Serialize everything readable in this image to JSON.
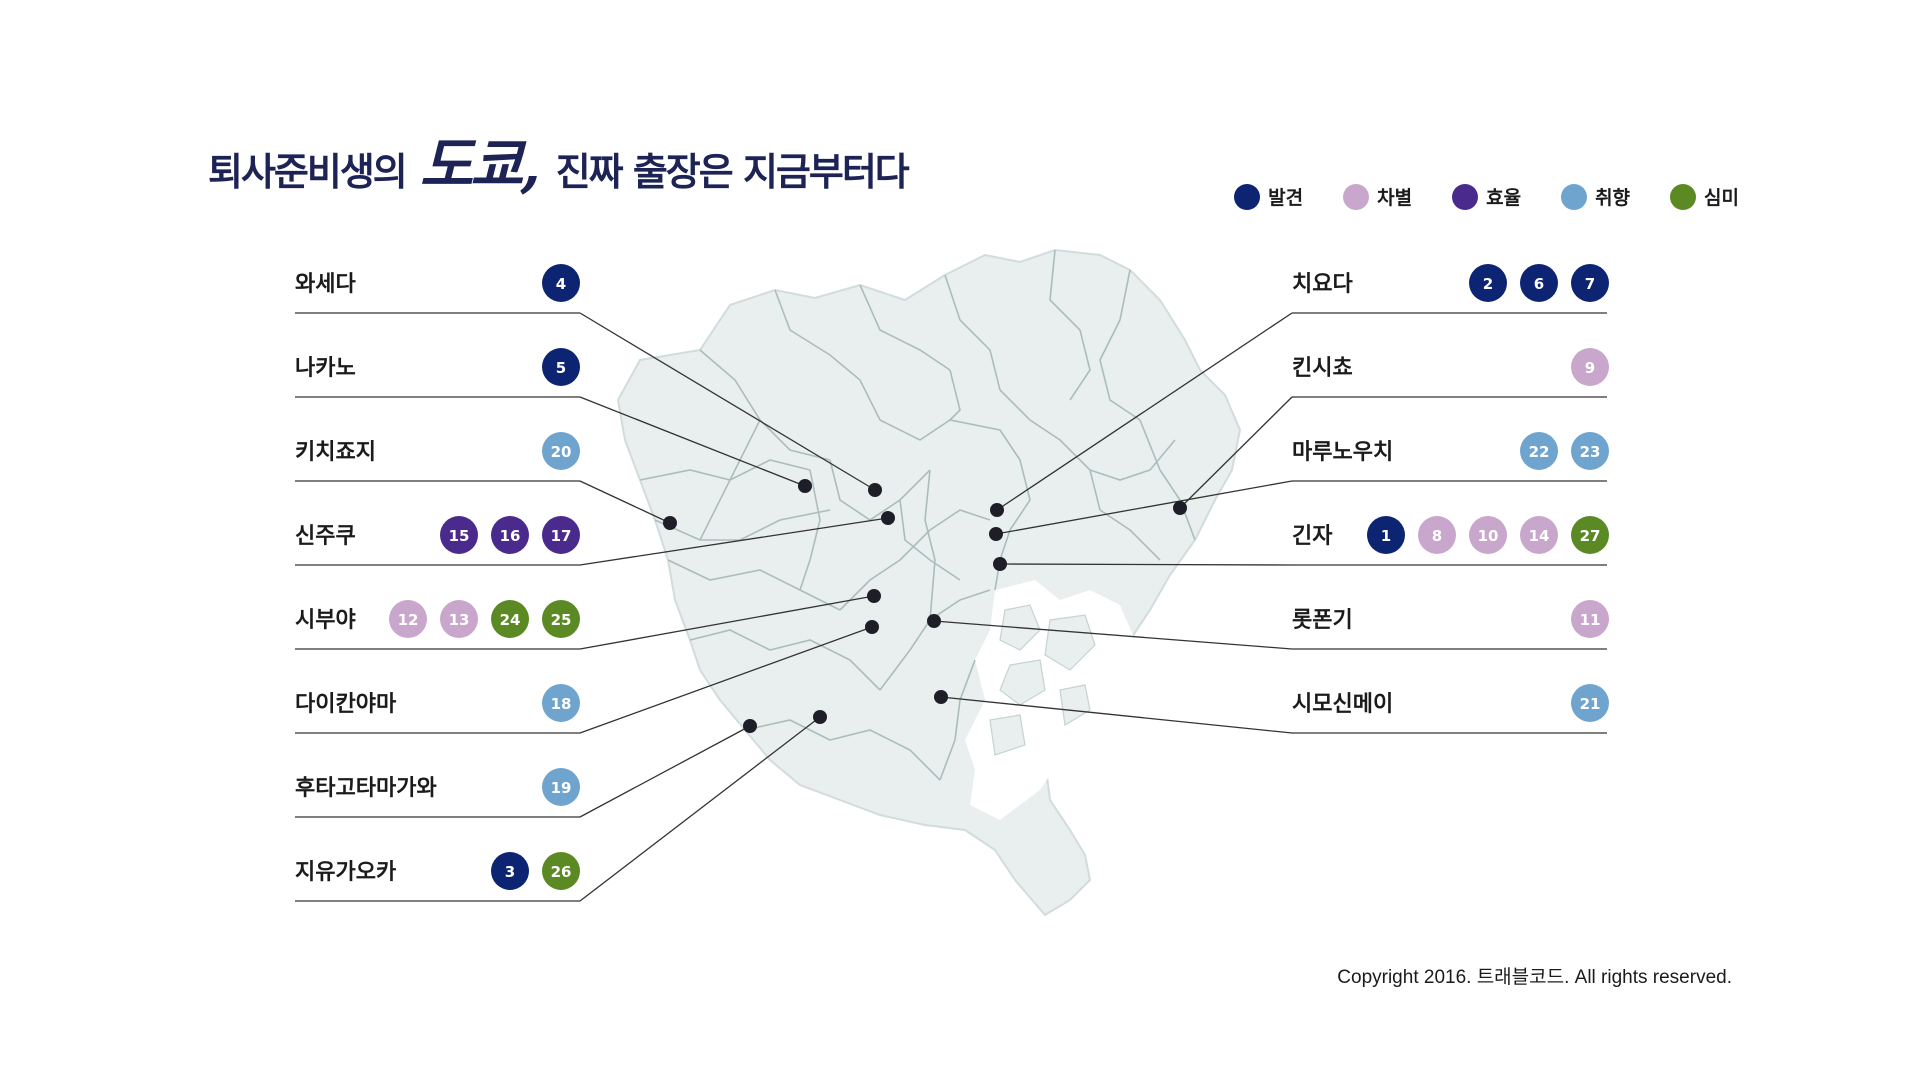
{
  "title": {
    "prefix": "퇴사준비생의",
    "script": "도쿄,",
    "suffix": "진짜 출장은 지금부터다"
  },
  "legend": [
    {
      "label": "발견",
      "color": "#0d2473"
    },
    {
      "label": "차별",
      "color": "#c9a6cc"
    },
    {
      "label": "효율",
      "color": "#4a2a8c"
    },
    {
      "label": "취향",
      "color": "#6fa4cf"
    },
    {
      "label": "심미",
      "color": "#5b8a25"
    }
  ],
  "locations_left": [
    {
      "name": "와세다",
      "badges": [
        {
          "n": "4",
          "cat": 0
        }
      ]
    },
    {
      "name": "나카노",
      "badges": [
        {
          "n": "5",
          "cat": 0
        }
      ]
    },
    {
      "name": "키치죠지",
      "badges": [
        {
          "n": "20",
          "cat": 3
        }
      ]
    },
    {
      "name": "신주쿠",
      "badges": [
        {
          "n": "15",
          "cat": 2
        },
        {
          "n": "16",
          "cat": 2
        },
        {
          "n": "17",
          "cat": 2
        }
      ]
    },
    {
      "name": "시부야",
      "badges": [
        {
          "n": "12",
          "cat": 1
        },
        {
          "n": "13",
          "cat": 1
        },
        {
          "n": "24",
          "cat": 4
        },
        {
          "n": "25",
          "cat": 4
        }
      ]
    },
    {
      "name": "다이칸야마",
      "badges": [
        {
          "n": "18",
          "cat": 3
        }
      ]
    },
    {
      "name": "후타고타마가와",
      "badges": [
        {
          "n": "19",
          "cat": 3
        }
      ]
    },
    {
      "name": "지유가오카",
      "badges": [
        {
          "n": "3",
          "cat": 0
        },
        {
          "n": "26",
          "cat": 4
        }
      ]
    }
  ],
  "locations_right": [
    {
      "name": "치요다",
      "badges": [
        {
          "n": "2",
          "cat": 0
        },
        {
          "n": "6",
          "cat": 0
        },
        {
          "n": "7",
          "cat": 0
        }
      ]
    },
    {
      "name": "킨시쵸",
      "badges": [
        {
          "n": "9",
          "cat": 1
        }
      ]
    },
    {
      "name": "마루노우치",
      "badges": [
        {
          "n": "22",
          "cat": 3
        },
        {
          "n": "23",
          "cat": 3
        }
      ]
    },
    {
      "name": "긴자",
      "badges": [
        {
          "n": "1",
          "cat": 0
        },
        {
          "n": "8",
          "cat": 1
        },
        {
          "n": "10",
          "cat": 1
        },
        {
          "n": "14",
          "cat": 1
        },
        {
          "n": "27",
          "cat": 4
        }
      ]
    },
    {
      "name": "롯폰기",
      "badges": [
        {
          "n": "11",
          "cat": 1
        }
      ]
    },
    {
      "name": "시모신메이",
      "badges": [
        {
          "n": "21",
          "cat": 3
        }
      ]
    }
  ],
  "copyright": "Copyright 2016. 트래블코드. All rights reserved."
}
